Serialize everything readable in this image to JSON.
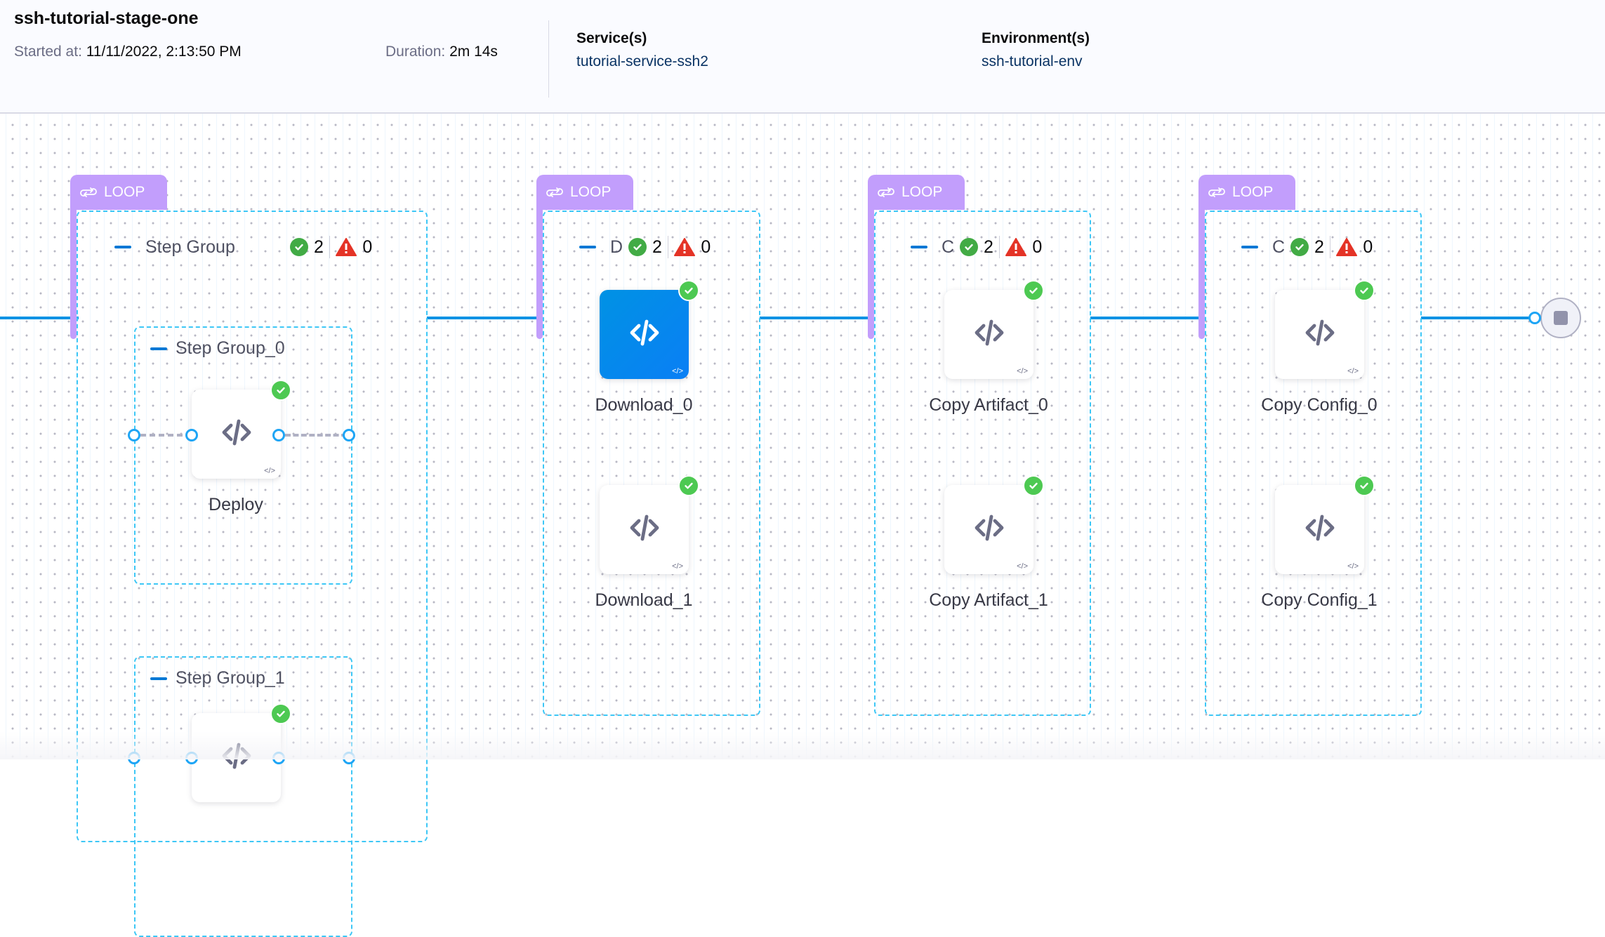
{
  "header": {
    "title": "ssh-tutorial-stage-one",
    "started_label": "Started at",
    "started_value": "11/11/2022, 2:13:50 PM",
    "duration_label": "Duration",
    "duration_value": "2m 14s",
    "service_title": "Service(s)",
    "service_value": "tutorial-service-ssh2",
    "environment_title": "Environment(s)",
    "environment_value": "ssh-tutorial-env"
  },
  "colors": {
    "pipeline_line": "#0092e4",
    "loop_tab": "#c29efc",
    "group_border": "#3dc7f6",
    "success": "#42ab45",
    "failure": "#e43326",
    "selected_node": "#0092e4"
  },
  "groups": [
    {
      "loop_label": "LOOP",
      "name": "Step Group",
      "success_count": "2",
      "failed_count": "0",
      "subgroups": [
        {
          "name": "Step Group_0",
          "step": "Deploy",
          "status": "success"
        },
        {
          "name": "Step Group_1",
          "status": "success"
        }
      ]
    },
    {
      "loop_label": "LOOP",
      "name": "D",
      "success_count": "2",
      "failed_count": "0",
      "steps": [
        {
          "name": "Download_0",
          "status": "success",
          "selected": true
        },
        {
          "name": "Download_1",
          "status": "success"
        }
      ]
    },
    {
      "loop_label": "LOOP",
      "name": "C",
      "success_count": "2",
      "failed_count": "0",
      "steps": [
        {
          "name": "Copy Artifact_0",
          "status": "success"
        },
        {
          "name": "Copy Artifact_1",
          "status": "success"
        }
      ]
    },
    {
      "loop_label": "LOOP",
      "name": "C",
      "success_count": "2",
      "failed_count": "0",
      "steps": [
        {
          "name": "Copy Config_0",
          "status": "success"
        },
        {
          "name": "Copy Config_1",
          "status": "success"
        }
      ]
    }
  ],
  "end_node": {
    "icon": "stop-icon"
  }
}
